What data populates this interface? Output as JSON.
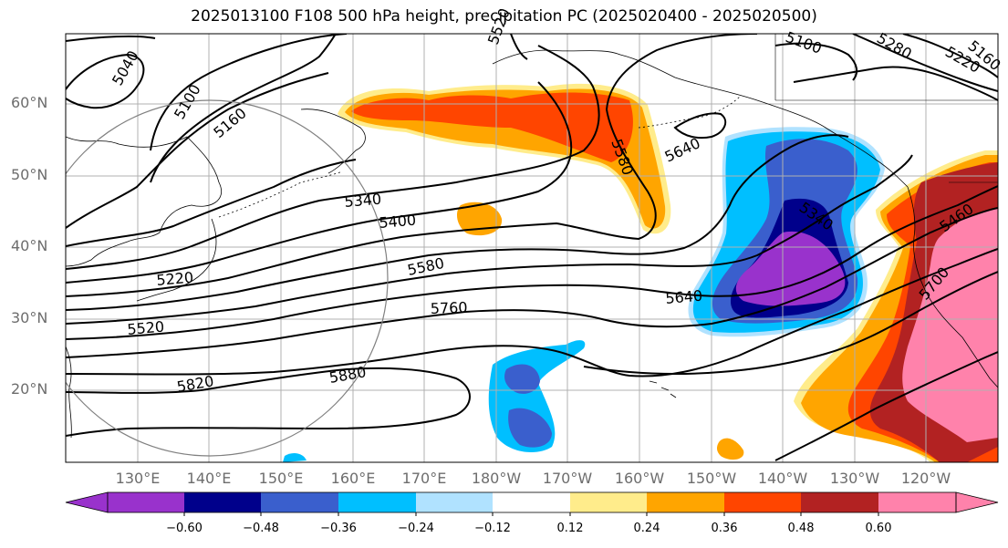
{
  "title": "2025013100 F108 500 hPa height, precipitation PC (2025020400 - 2025020500)",
  "lat_labels": [
    "60°N",
    "50°N",
    "40°N",
    "30°N",
    "20°N"
  ],
  "lon_labels": [
    "130°E",
    "140°E",
    "150°E",
    "160°E",
    "170°E",
    "180°W",
    "170°W",
    "160°W",
    "150°W",
    "140°W",
    "130°W",
    "120°W"
  ],
  "contour_labels": [
    "5040",
    "5100",
    "5160",
    "5340",
    "5400",
    "5580",
    "5640",
    "5520",
    "5820",
    "5880",
    "5760",
    "5640",
    "5580",
    "5340",
    "5460",
    "5700",
    "5280",
    "5220",
    "5160",
    "5220",
    "5520",
    "5100"
  ],
  "colorbar": {
    "ticks": [
      "−0.60",
      "−0.48",
      "−0.36",
      "−0.24",
      "−0.12",
      "0.12",
      "0.24",
      "0.36",
      "0.48",
      "0.60"
    ],
    "colors": [
      "#9932cc",
      "#00008b",
      "#3a5fcd",
      "#00bfff",
      "#b0e2ff",
      "#ffffff",
      "#ffec8b",
      "#ffa500",
      "#ff4500",
      "#b22222",
      "#ff82ab"
    ]
  }
}
